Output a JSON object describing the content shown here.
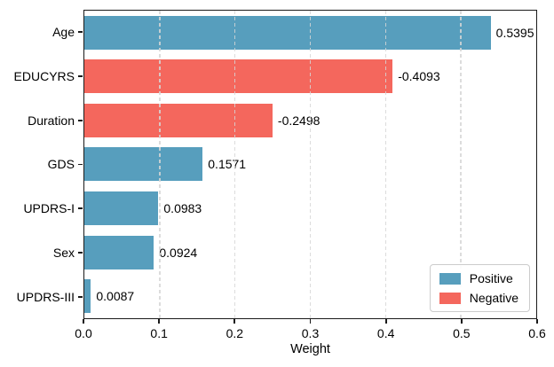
{
  "chart_data": {
    "type": "bar",
    "orientation": "horizontal",
    "title": "",
    "xlabel": "Weight",
    "ylabel": "",
    "xlim": [
      0.0,
      0.6
    ],
    "xticks": [
      "0.0",
      "0.1",
      "0.2",
      "0.3",
      "0.4",
      "0.5",
      "0.6"
    ],
    "grid": "vertical dashed gridlines at each x tick",
    "categories": [
      "Age",
      "EDUCYRS",
      "Duration",
      "GDS",
      "UPDRS-I",
      "Sex",
      "UPDRS-III"
    ],
    "values": [
      0.5395,
      -0.4093,
      -0.2498,
      0.1571,
      0.0983,
      0.0924,
      0.0087
    ],
    "value_labels": [
      "0.5395",
      "-0.4093",
      "-0.2498",
      "0.1571",
      "0.0983",
      "0.0924",
      "0.0087"
    ],
    "bar_note": "bars drawn at absolute value length, colored by sign, value label to right of bar end",
    "legend": {
      "position": "lower right",
      "entries": [
        {
          "label": "Positive",
          "color": "#579EBD"
        },
        {
          "label": "Negative",
          "color": "#F4675D"
        }
      ]
    },
    "colors": {
      "positive": "#579EBD",
      "negative": "#F4675D",
      "gridline": "#D6D6D6",
      "axis": "#1A1A1A",
      "text": "#000000"
    }
  }
}
